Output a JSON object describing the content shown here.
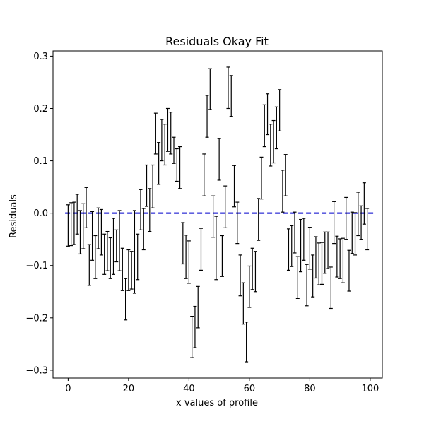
{
  "chart_data": {
    "type": "errorbar",
    "title": "Residuals Okay Fit",
    "xlabel": "x values of profile",
    "ylabel": "Residuals",
    "xlim": [
      -5,
      104
    ],
    "ylim": [
      -0.315,
      0.31
    ],
    "x_ticks": [
      0,
      20,
      40,
      60,
      80,
      100
    ],
    "x_tick_labels": [
      "0",
      "20",
      "40",
      "60",
      "80",
      "100"
    ],
    "y_ticks": [
      -0.3,
      -0.2,
      -0.1,
      0.0,
      0.1,
      0.2,
      0.3
    ],
    "y_tick_labels": [
      "−0.3",
      "−0.2",
      "−0.1",
      "0.0",
      "0.1",
      "0.2",
      "0.3"
    ],
    "grid": false,
    "reference_line": {
      "y": 0.0,
      "style": "dashed",
      "color": "#0000cc"
    },
    "errorbar_color": "#000000",
    "points": [
      {
        "x": 0,
        "low": -0.063,
        "high": 0.016
      },
      {
        "x": 1,
        "low": -0.062,
        "high": 0.02
      },
      {
        "x": 2,
        "low": -0.06,
        "high": 0.021
      },
      {
        "x": 3,
        "low": -0.04,
        "high": 0.036
      },
      {
        "x": 4,
        "low": -0.078,
        "high": 0.005
      },
      {
        "x": 5,
        "low": -0.068,
        "high": 0.018
      },
      {
        "x": 6,
        "low": -0.028,
        "high": 0.049
      },
      {
        "x": 7,
        "low": -0.138,
        "high": -0.06
      },
      {
        "x": 8,
        "low": -0.09,
        "high": 0.003
      },
      {
        "x": 9,
        "low": -0.125,
        "high": -0.043
      },
      {
        "x": 10,
        "low": -0.068,
        "high": 0.01
      },
      {
        "x": 11,
        "low": -0.08,
        "high": 0.007
      },
      {
        "x": 12,
        "low": -0.117,
        "high": -0.04
      },
      {
        "x": 13,
        "low": -0.11,
        "high": -0.035
      },
      {
        "x": 14,
        "low": -0.125,
        "high": -0.047
      },
      {
        "x": 15,
        "low": -0.117,
        "high": -0.01
      },
      {
        "x": 16,
        "low": -0.093,
        "high": -0.032
      },
      {
        "x": 17,
        "low": -0.11,
        "high": 0.005
      },
      {
        "x": 18,
        "low": -0.148,
        "high": -0.067
      },
      {
        "x": 19,
        "low": -0.204,
        "high": -0.125
      },
      {
        "x": 20,
        "low": -0.148,
        "high": -0.07
      },
      {
        "x": 21,
        "low": -0.145,
        "high": -0.073
      },
      {
        "x": 22,
        "low": -0.153,
        "high": 0.005
      },
      {
        "x": 23,
        "low": -0.127,
        "high": -0.04
      },
      {
        "x": 24,
        "low": -0.032,
        "high": 0.045
      },
      {
        "x": 25,
        "low": -0.07,
        "high": 0.009
      },
      {
        "x": 26,
        "low": 0.013,
        "high": 0.092
      },
      {
        "x": 27,
        "low": -0.035,
        "high": 0.047
      },
      {
        "x": 28,
        "low": 0.01,
        "high": 0.092
      },
      {
        "x": 29,
        "low": 0.113,
        "high": 0.191
      },
      {
        "x": 30,
        "low": 0.055,
        "high": 0.135
      },
      {
        "x": 31,
        "low": 0.1,
        "high": 0.179
      },
      {
        "x": 32,
        "low": 0.092,
        "high": 0.17
      },
      {
        "x": 33,
        "low": 0.118,
        "high": 0.2
      },
      {
        "x": 34,
        "low": 0.113,
        "high": 0.193
      },
      {
        "x": 35,
        "low": 0.095,
        "high": 0.145
      },
      {
        "x": 36,
        "low": 0.061,
        "high": 0.123
      },
      {
        "x": 37,
        "low": 0.047,
        "high": 0.127
      },
      {
        "x": 38,
        "low": -0.097,
        "high": -0.018
      },
      {
        "x": 39,
        "low": -0.125,
        "high": -0.042
      },
      {
        "x": 40,
        "low": -0.134,
        "high": -0.053
      },
      {
        "x": 41,
        "low": -0.276,
        "high": -0.197
      },
      {
        "x": 42,
        "low": -0.257,
        "high": -0.178
      },
      {
        "x": 43,
        "low": -0.219,
        "high": -0.14
      },
      {
        "x": 44,
        "low": -0.109,
        "high": -0.029
      },
      {
        "x": 45,
        "low": 0.033,
        "high": 0.113
      },
      {
        "x": 46,
        "low": 0.145,
        "high": 0.225
      },
      {
        "x": 47,
        "low": 0.198,
        "high": 0.276
      },
      {
        "x": 48,
        "low": -0.046,
        "high": 0.033
      },
      {
        "x": 49,
        "low": -0.127,
        "high": -0.006
      },
      {
        "x": 50,
        "low": 0.063,
        "high": 0.143
      },
      {
        "x": 51,
        "low": -0.121,
        "high": -0.043
      },
      {
        "x": 52,
        "low": -0.028,
        "high": 0.052
      },
      {
        "x": 53,
        "low": 0.2,
        "high": 0.279
      },
      {
        "x": 54,
        "low": 0.185,
        "high": 0.263
      },
      {
        "x": 55,
        "low": 0.012,
        "high": 0.091
      },
      {
        "x": 56,
        "low": -0.058,
        "high": 0.021
      },
      {
        "x": 57,
        "low": -0.158,
        "high": -0.08
      },
      {
        "x": 58,
        "low": -0.212,
        "high": -0.133
      },
      {
        "x": 59,
        "low": -0.284,
        "high": -0.208
      },
      {
        "x": 60,
        "low": -0.18,
        "high": -0.101
      },
      {
        "x": 61,
        "low": -0.146,
        "high": -0.067
      },
      {
        "x": 62,
        "low": -0.15,
        "high": -0.073
      },
      {
        "x": 63,
        "low": -0.052,
        "high": 0.028
      },
      {
        "x": 64,
        "low": 0.027,
        "high": 0.107
      },
      {
        "x": 65,
        "low": 0.127,
        "high": 0.207
      },
      {
        "x": 66,
        "low": 0.15,
        "high": 0.228
      },
      {
        "x": 67,
        "low": 0.09,
        "high": 0.17
      },
      {
        "x": 68,
        "low": 0.096,
        "high": 0.177
      },
      {
        "x": 69,
        "low": 0.123,
        "high": 0.203
      },
      {
        "x": 70,
        "low": 0.157,
        "high": 0.236
      },
      {
        "x": 71,
        "low": 0.002,
        "high": 0.082
      },
      {
        "x": 72,
        "low": 0.033,
        "high": 0.112
      },
      {
        "x": 73,
        "low": -0.109,
        "high": -0.03
      },
      {
        "x": 74,
        "low": -0.102,
        "high": -0.024
      },
      {
        "x": 75,
        "low": -0.076,
        "high": 0.002
      },
      {
        "x": 76,
        "low": -0.163,
        "high": -0.083
      },
      {
        "x": 77,
        "low": -0.112,
        "high": -0.012
      },
      {
        "x": 78,
        "low": -0.09,
        "high": -0.01
      },
      {
        "x": 79,
        "low": -0.177,
        "high": -0.098
      },
      {
        "x": 80,
        "low": -0.107,
        "high": -0.027
      },
      {
        "x": 81,
        "low": -0.16,
        "high": -0.08
      },
      {
        "x": 82,
        "low": -0.124,
        "high": -0.045
      },
      {
        "x": 83,
        "low": -0.137,
        "high": -0.057
      },
      {
        "x": 84,
        "low": -0.136,
        "high": -0.056
      },
      {
        "x": 85,
        "low": -0.115,
        "high": -0.036
      },
      {
        "x": 86,
        "low": -0.106,
        "high": -0.036
      },
      {
        "x": 87,
        "low": -0.182,
        "high": -0.103
      },
      {
        "x": 88,
        "low": -0.058,
        "high": 0.022
      },
      {
        "x": 89,
        "low": -0.122,
        "high": -0.044
      },
      {
        "x": 90,
        "low": -0.125,
        "high": -0.049
      },
      {
        "x": 91,
        "low": -0.133,
        "high": -0.048
      },
      {
        "x": 92,
        "low": -0.05,
        "high": 0.03
      },
      {
        "x": 93,
        "low": -0.149,
        "high": -0.071
      },
      {
        "x": 94,
        "low": -0.077,
        "high": 0.002
      },
      {
        "x": 95,
        "low": -0.08,
        "high": 0.001
      },
      {
        "x": 96,
        "low": -0.043,
        "high": 0.04
      },
      {
        "x": 97,
        "low": -0.05,
        "high": 0.014
      },
      {
        "x": 98,
        "low": -0.021,
        "high": 0.058
      },
      {
        "x": 99,
        "low": -0.07,
        "high": 0.009
      }
    ]
  }
}
